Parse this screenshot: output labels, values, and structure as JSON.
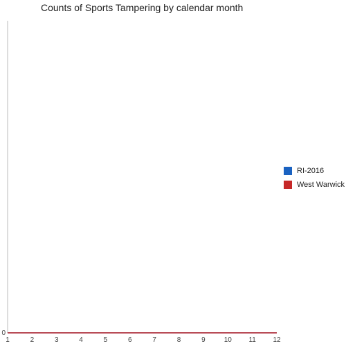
{
  "chart_data": {
    "type": "line",
    "title": "Counts of Sports Tampering by calendar month",
    "xlabel": "",
    "ylabel": "",
    "x": [
      1,
      2,
      3,
      4,
      5,
      6,
      7,
      8,
      9,
      10,
      11,
      12
    ],
    "x_tick_labels": [
      "1",
      "2",
      "3",
      "4",
      "5",
      "6",
      "7",
      "8",
      "9",
      "10",
      "11",
      "12"
    ],
    "y_tick_labels": [
      "0"
    ],
    "ylim": [
      0,
      1
    ],
    "grid": false,
    "legend_position": "right",
    "series": [
      {
        "name": "RI-2016",
        "color": "#1a62c1",
        "values": [
          0,
          0,
          0,
          0,
          0,
          0,
          0,
          0,
          0,
          0,
          0,
          0
        ]
      },
      {
        "name": "West Warwick",
        "color": "#c62828",
        "values": [
          0,
          0,
          0,
          0,
          0,
          0,
          0,
          0,
          0,
          0,
          0,
          0
        ]
      }
    ]
  }
}
